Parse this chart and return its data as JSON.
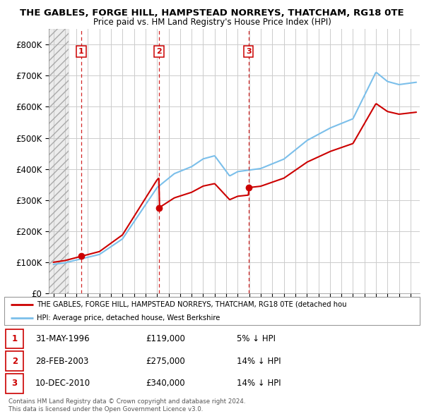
{
  "title": "THE GABLES, FORGE HILL, HAMPSTEAD NORREYS, THATCHAM, RG18 0TE",
  "subtitle": "Price paid vs. HM Land Registry's House Price Index (HPI)",
  "ylim": [
    0,
    850000
  ],
  "yticks": [
    0,
    100000,
    200000,
    300000,
    400000,
    500000,
    600000,
    700000,
    800000
  ],
  "ytick_labels": [
    "£0",
    "£100K",
    "£200K",
    "£300K",
    "£400K",
    "£500K",
    "£600K",
    "£700K",
    "£800K"
  ],
  "xlim_start": 1993.6,
  "xlim_end": 2025.8,
  "hatch_end": 1995.3,
  "sales": [
    {
      "year": 1996.42,
      "price": 119000,
      "label": "1"
    },
    {
      "year": 2003.16,
      "price": 275000,
      "label": "2"
    },
    {
      "year": 2010.94,
      "price": 340000,
      "label": "3"
    }
  ],
  "hpi_color": "#7bbfea",
  "price_color": "#cc0000",
  "legend_line1": "THE GABLES, FORGE HILL, HAMPSTEAD NORREYS, THATCHAM, RG18 0TE (detached hou",
  "legend_line2": "HPI: Average price, detached house, West Berkshire",
  "table_data": [
    {
      "num": "1",
      "date": "31-MAY-1996",
      "price": "£119,000",
      "note": "5% ↓ HPI"
    },
    {
      "num": "2",
      "date": "28-FEB-2003",
      "price": "£275,000",
      "note": "14% ↓ HPI"
    },
    {
      "num": "3",
      "date": "10-DEC-2010",
      "price": "£340,000",
      "note": "14% ↓ HPI"
    }
  ],
  "footer": "Contains HM Land Registry data © Crown copyright and database right 2024.\nThis data is licensed under the Open Government Licence v3.0.",
  "grid_color": "#cccccc",
  "bg_color": "#ffffff"
}
